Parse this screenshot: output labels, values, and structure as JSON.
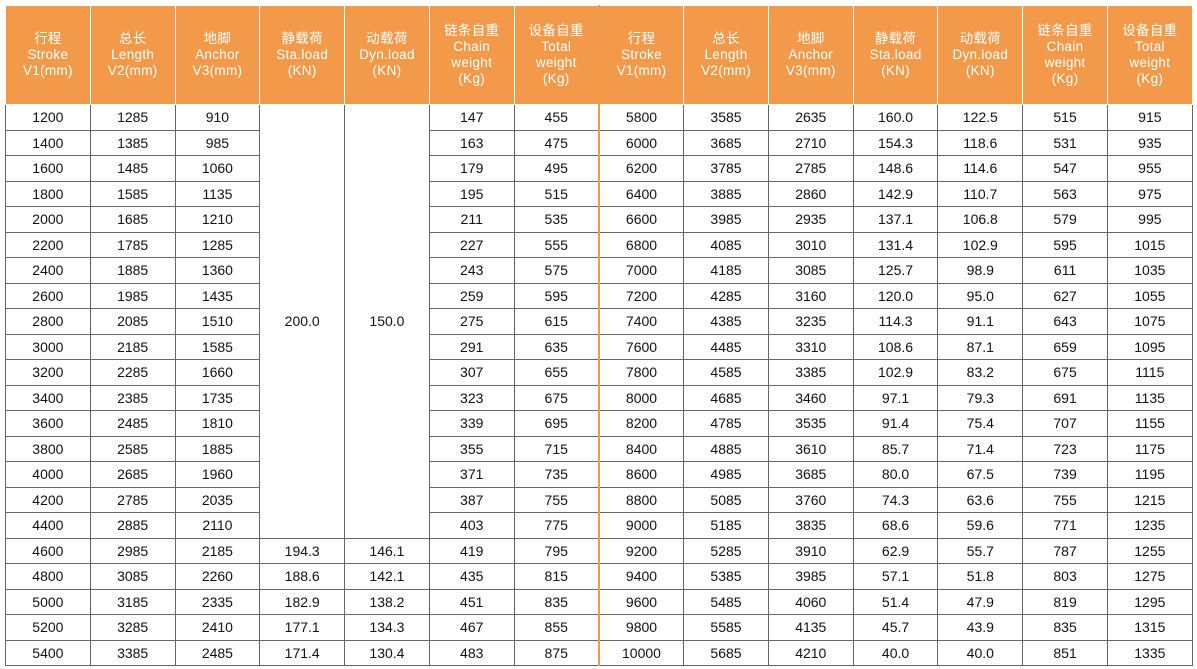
{
  "left_table": {
    "header": [
      [
        "行程",
        "Stroke",
        "V1(mm)"
      ],
      [
        "总长",
        "Length",
        "V2(mm)"
      ],
      [
        "地脚",
        "Anchor",
        "V3(mm)"
      ],
      [
        "静载荷",
        "Sta.load",
        "(KN)"
      ],
      [
        "动载荷",
        "Dyn.load",
        "(KN)"
      ],
      [
        "链条自重",
        "Chain",
        "weight",
        "(Kg)"
      ],
      [
        "设备自重",
        "Total",
        "weight",
        "(Kg)"
      ]
    ],
    "merged": [
      "200.0",
      "150.0"
    ],
    "rows": [
      [
        "1200",
        "1285",
        "910",
        "147",
        "455"
      ],
      [
        "1400",
        "1385",
        "985",
        "163",
        "475"
      ],
      [
        "1600",
        "1485",
        "1060",
        "179",
        "495"
      ],
      [
        "1800",
        "1585",
        "1135",
        "195",
        "515"
      ],
      [
        "2000",
        "1685",
        "1210",
        "211",
        "535"
      ],
      [
        "2200",
        "1785",
        "1285",
        "227",
        "555"
      ],
      [
        "2400",
        "1885",
        "1360",
        "243",
        "575"
      ],
      [
        "2600",
        "1985",
        "1435",
        "259",
        "595"
      ],
      [
        "2800",
        "2085",
        "1510",
        "275",
        "615"
      ],
      [
        "3000",
        "2185",
        "1585",
        "291",
        "635"
      ],
      [
        "3200",
        "2285",
        "1660",
        "307",
        "655"
      ],
      [
        "3400",
        "2385",
        "1735",
        "323",
        "675"
      ],
      [
        "3600",
        "2485",
        "1810",
        "339",
        "695"
      ],
      [
        "3800",
        "2585",
        "1885",
        "355",
        "715"
      ],
      [
        "4000",
        "2685",
        "1960",
        "371",
        "735"
      ],
      [
        "4200",
        "2785",
        "2035",
        "387",
        "755"
      ],
      [
        "4400",
        "2885",
        "2110",
        "403",
        "775"
      ],
      [
        "4600",
        "2985",
        "2185",
        "194.3",
        "146.1",
        "419",
        "795"
      ],
      [
        "4800",
        "3085",
        "2260",
        "188.6",
        "142.1",
        "435",
        "815"
      ],
      [
        "5000",
        "3185",
        "2335",
        "182.9",
        "138.2",
        "451",
        "835"
      ],
      [
        "5200",
        "3285",
        "2410",
        "177.1",
        "134.3",
        "467",
        "855"
      ],
      [
        "5400",
        "3385",
        "2485",
        "171.4",
        "130.4",
        "483",
        "875"
      ]
    ]
  },
  "right_table": {
    "header": [
      [
        "行程",
        "Stroke",
        "V1(mm)"
      ],
      [
        "总长",
        "Length",
        "V2(mm)"
      ],
      [
        "地脚",
        "Anchor",
        "V3(mm)"
      ],
      [
        "静载荷",
        "Sta.load",
        "(KN)"
      ],
      [
        "动载荷",
        "Dyn.load",
        "(KN)"
      ],
      [
        "链条自重",
        "Chain",
        "weight",
        "(Kg)"
      ],
      [
        "设备自重",
        "Total",
        "weight",
        "(Kg)"
      ]
    ],
    "rows": [
      [
        "5800",
        "3585",
        "2635",
        "160.0",
        "122.5",
        "515",
        "915"
      ],
      [
        "6000",
        "3685",
        "2710",
        "154.3",
        "118.6",
        "531",
        "935"
      ],
      [
        "6200",
        "3785",
        "2785",
        "148.6",
        "114.6",
        "547",
        "955"
      ],
      [
        "6400",
        "3885",
        "2860",
        "142.9",
        "110.7",
        "563",
        "975"
      ],
      [
        "6600",
        "3985",
        "2935",
        "137.1",
        "106.8",
        "579",
        "995"
      ],
      [
        "6800",
        "4085",
        "3010",
        "131.4",
        "102.9",
        "595",
        "1015"
      ],
      [
        "7000",
        "4185",
        "3085",
        "125.7",
        "98.9",
        "611",
        "1035"
      ],
      [
        "7200",
        "4285",
        "3160",
        "120.0",
        "95.0",
        "627",
        "1055"
      ],
      [
        "7400",
        "4385",
        "3235",
        "114.3",
        "91.1",
        "643",
        "1075"
      ],
      [
        "7600",
        "4485",
        "3310",
        "108.6",
        "87.1",
        "659",
        "1095"
      ],
      [
        "7800",
        "4585",
        "3385",
        "102.9",
        "83.2",
        "675",
        "1115"
      ],
      [
        "8000",
        "4685",
        "3460",
        "97.1",
        "79.3",
        "691",
        "1135"
      ],
      [
        "8200",
        "4785",
        "3535",
        "91.4",
        "75.4",
        "707",
        "1155"
      ],
      [
        "8400",
        "4885",
        "3610",
        "85.7",
        "71.4",
        "723",
        "1175"
      ],
      [
        "8600",
        "4985",
        "3685",
        "80.0",
        "67.5",
        "739",
        "1195"
      ],
      [
        "8800",
        "5085",
        "3760",
        "74.3",
        "63.6",
        "755",
        "1215"
      ],
      [
        "9000",
        "5185",
        "3835",
        "68.6",
        "59.6",
        "771",
        "1235"
      ],
      [
        "9200",
        "5285",
        "3910",
        "62.9",
        "55.7",
        "787",
        "1255"
      ],
      [
        "9400",
        "5385",
        "3985",
        "57.1",
        "51.8",
        "803",
        "1275"
      ],
      [
        "9600",
        "5485",
        "4060",
        "51.4",
        "47.9",
        "819",
        "1295"
      ],
      [
        "9800",
        "5585",
        "4135",
        "45.7",
        "43.9",
        "835",
        "1315"
      ],
      [
        "10000",
        "5685",
        "4210",
        "40.0",
        "40.0",
        "851",
        "1335"
      ]
    ]
  }
}
